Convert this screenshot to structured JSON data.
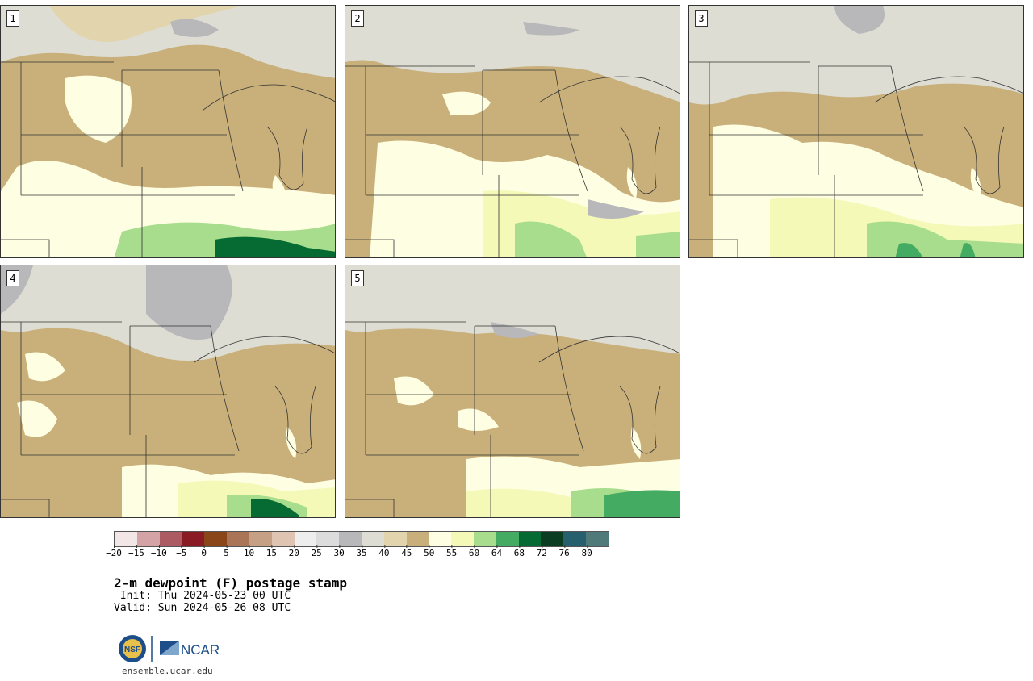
{
  "panels": [
    {
      "label": "1"
    },
    {
      "label": "2"
    },
    {
      "label": "3"
    },
    {
      "label": "4"
    },
    {
      "label": "5"
    }
  ],
  "colorbar": {
    "colors": [
      "#f3e6e6",
      "#d3a3a6",
      "#ad5b62",
      "#8a1a24",
      "#8a4518",
      "#a97556",
      "#c6a085",
      "#e0c4b2",
      "#eeeeee",
      "#dcdcdc",
      "#b8b8bb",
      "#ddddd3",
      "#e2d5ad",
      "#c9b07a",
      "#fefee2",
      "#f4f9b8",
      "#a8dd8d",
      "#43ac62",
      "#056b33",
      "#0a3d22",
      "#265f6d",
      "#507a7a"
    ],
    "ticks": [
      "−20",
      "−15",
      "−10",
      "−5",
      "0",
      "5",
      "10",
      "15",
      "20",
      "25",
      "30",
      "35",
      "40",
      "45",
      "50",
      "55",
      "60",
      "64",
      "68",
      "72",
      "76",
      "80"
    ]
  },
  "title": "2-m dewpoint (F) postage stamp",
  "init": " Init: Thu 2024-05-23 00 UTC",
  "valid": "Valid: Sun 2024-05-26 08 UTC",
  "logo": {
    "nsf": "NSF",
    "ncar": "NCAR"
  },
  "site": "ensemble.ucar.edu"
}
